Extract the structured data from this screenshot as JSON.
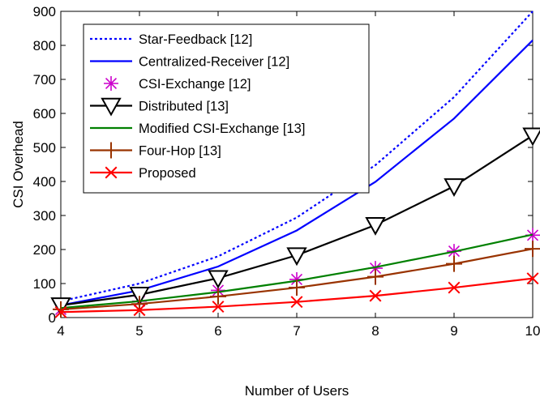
{
  "chart_data": {
    "type": "line",
    "title": "",
    "xlabel": "Number of Users",
    "ylabel": "CSI Overhead",
    "xlim": [
      4,
      10
    ],
    "ylim": [
      0,
      900
    ],
    "x_ticks": [
      "4",
      "5",
      "6",
      "7",
      "8",
      "9",
      "10"
    ],
    "y_ticks": [
      "0",
      "100",
      "200",
      "300",
      "400",
      "500",
      "600",
      "700",
      "800",
      "900"
    ],
    "grid": false,
    "legend_position": "top-left",
    "x": [
      4,
      5,
      6,
      7,
      8,
      9,
      10
    ],
    "series": [
      {
        "name": "Star-Feedback [12]",
        "color": "#0000ff",
        "line": "dotted",
        "marker": "none",
        "values": [
          48,
          100,
          180,
          294,
          448,
          648,
          900
        ]
      },
      {
        "name": "Centralized-Receiver [12]",
        "color": "#0000ff",
        "line": "solid",
        "marker": "none",
        "values": [
          36,
          80,
          150,
          256,
          399,
          585,
          815
        ]
      },
      {
        "name": "CSI-Exchange [12]",
        "color": "#cc00cc",
        "line": "none",
        "marker": "asterisk",
        "values": [
          24,
          48,
          80,
          112,
          145,
          195,
          242
        ]
      },
      {
        "name": "Distributed [13]",
        "color": "#000000",
        "line": "solid",
        "marker": "triangle-down",
        "values": [
          36,
          67,
          116,
          183,
          272,
          386,
          535
        ]
      },
      {
        "name": "Modified CSI-Exchange [13]",
        "color": "#008000",
        "line": "solid",
        "marker": "none",
        "values": [
          28,
          48,
          75,
          108,
          148,
          194,
          244
        ]
      },
      {
        "name": "Four-Hop [13]",
        "color": "#993300",
        "line": "solid",
        "marker": "plus",
        "values": [
          24,
          40,
          62,
          88,
          120,
          158,
          202
        ]
      },
      {
        "name": "Proposed",
        "color": "#ff0000",
        "line": "solid",
        "marker": "x",
        "values": [
          16,
          22,
          32,
          46,
          64,
          88,
          115
        ]
      }
    ]
  }
}
